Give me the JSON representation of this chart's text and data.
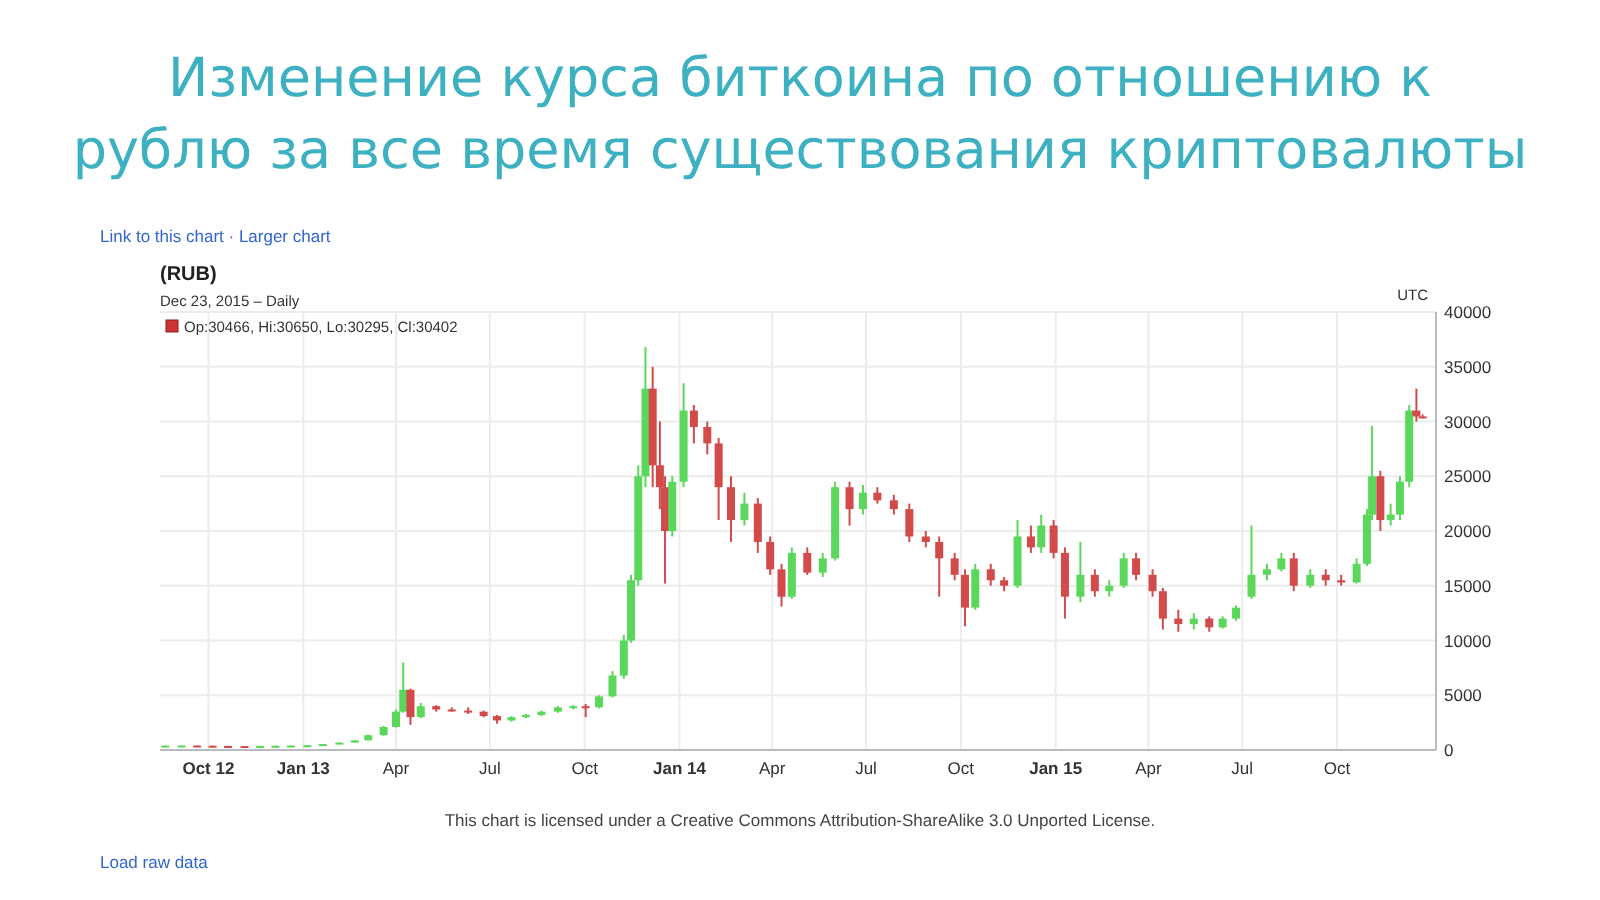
{
  "chart_data": {
    "type": "candlestick",
    "title": "Изменение курса биткоина по отношению к рублю за все время существования криптовалюты",
    "subtitle": "(RUB)",
    "annotations": [
      "Link to this chart · Larger chart",
      "Dec 23, 2015 – Daily",
      "Op:30466, Hi:30650, Lo:30295, Cl:30402",
      "UTC",
      "This chart is licensed under a Creative Commons Attribution-ShareAlike 3.0 Unported License.",
      "Load raw data"
    ],
    "x": [
      "2012-08-20",
      "2012-09-05",
      "2012-09-20",
      "2012-10-05",
      "2012-10-20",
      "2012-11-05",
      "2012-11-20",
      "2012-12-05",
      "2012-12-20",
      "2013-01-05",
      "2013-01-20",
      "2013-02-05",
      "2013-02-20",
      "2013-03-05",
      "2013-03-20",
      "2013-04-01",
      "2013-04-08",
      "2013-04-15",
      "2013-04-25",
      "2013-05-10",
      "2013-05-25",
      "2013-06-10",
      "2013-06-25",
      "2013-07-08",
      "2013-07-22",
      "2013-08-05",
      "2013-08-20",
      "2013-09-05",
      "2013-09-20",
      "2013-10-02",
      "2013-10-15",
      "2013-10-28",
      "2013-11-08",
      "2013-11-15",
      "2013-11-22",
      "2013-11-29",
      "2013-12-06",
      "2013-12-13",
      "2013-12-18",
      "2013-12-25",
      "2014-01-05",
      "2014-01-15",
      "2014-01-28",
      "2014-02-08",
      "2014-02-20",
      "2014-03-05",
      "2014-03-18",
      "2014-03-30",
      "2014-04-10",
      "2014-04-20",
      "2014-05-05",
      "2014-05-20",
      "2014-06-01",
      "2014-06-15",
      "2014-06-28",
      "2014-07-12",
      "2014-07-28",
      "2014-08-12",
      "2014-08-28",
      "2014-09-10",
      "2014-09-25",
      "2014-10-05",
      "2014-10-15",
      "2014-10-30",
      "2014-11-12",
      "2014-11-25",
      "2014-12-08",
      "2014-12-18",
      "2014-12-30",
      "2015-01-10",
      "2015-01-25",
      "2015-02-08",
      "2015-02-22",
      "2015-03-08",
      "2015-03-20",
      "2015-04-05",
      "2015-04-15",
      "2015-04-30",
      "2015-05-15",
      "2015-05-30",
      "2015-06-12",
      "2015-06-25",
      "2015-07-10",
      "2015-07-25",
      "2015-08-08",
      "2015-08-20",
      "2015-09-05",
      "2015-09-20",
      "2015-10-05",
      "2015-10-20",
      "2015-10-30",
      "2015-11-04",
      "2015-11-12",
      "2015-11-22",
      "2015-12-01",
      "2015-12-10",
      "2015-12-17",
      "2015-12-23"
    ],
    "ohlc": [
      [
        380,
        420,
        360,
        400
      ],
      [
        400,
        430,
        380,
        410
      ],
      [
        410,
        420,
        380,
        390
      ],
      [
        390,
        400,
        350,
        370
      ],
      [
        370,
        380,
        340,
        360
      ],
      [
        360,
        370,
        330,
        350
      ],
      [
        350,
        380,
        340,
        370
      ],
      [
        370,
        400,
        360,
        390
      ],
      [
        390,
        420,
        380,
        410
      ],
      [
        410,
        450,
        400,
        440
      ],
      [
        440,
        560,
        430,
        540
      ],
      [
        540,
        700,
        530,
        680
      ],
      [
        680,
        900,
        660,
        880
      ],
      [
        880,
        1400,
        860,
        1350
      ],
      [
        1350,
        2200,
        1300,
        2100
      ],
      [
        2100,
        3700,
        2050,
        3500
      ],
      [
        3500,
        8000,
        3400,
        5500
      ],
      [
        5500,
        5600,
        2300,
        3000
      ],
      [
        3000,
        4300,
        2900,
        4000
      ],
      [
        4000,
        4100,
        3500,
        3700
      ],
      [
        3700,
        3900,
        3500,
        3600
      ],
      [
        3600,
        3900,
        3300,
        3500
      ],
      [
        3500,
        3600,
        3000,
        3100
      ],
      [
        3100,
        3200,
        2400,
        2700
      ],
      [
        2700,
        3100,
        2600,
        3000
      ],
      [
        3000,
        3300,
        2900,
        3200
      ],
      [
        3200,
        3600,
        3100,
        3500
      ],
      [
        3500,
        4000,
        3400,
        3900
      ],
      [
        3900,
        4100,
        3700,
        4000
      ],
      [
        4000,
        4200,
        3000,
        3900
      ],
      [
        3900,
        5000,
        3800,
        4900
      ],
      [
        4900,
        7200,
        4800,
        6800
      ],
      [
        6800,
        10500,
        6500,
        10000
      ],
      [
        10000,
        16000,
        9800,
        15500
      ],
      [
        15500,
        26000,
        15000,
        25000
      ],
      [
        25000,
        36800,
        24000,
        33000
      ],
      [
        33000,
        35000,
        24000,
        26000
      ],
      [
        26000,
        30000,
        22000,
        24000
      ],
      [
        24000,
        25000,
        15200,
        20000
      ],
      [
        20000,
        25000,
        19500,
        24500
      ],
      [
        24500,
        33500,
        24000,
        31000
      ],
      [
        31000,
        31500,
        28000,
        29500
      ],
      [
        29500,
        30000,
        27000,
        28000
      ],
      [
        28000,
        28500,
        21000,
        24000
      ],
      [
        24000,
        25000,
        19000,
        21000
      ],
      [
        21000,
        23500,
        20500,
        22500
      ],
      [
        22500,
        23000,
        18000,
        19000
      ],
      [
        19000,
        19500,
        16000,
        16500
      ],
      [
        16500,
        17000,
        13100,
        14000
      ],
      [
        14000,
        18500,
        13800,
        18000
      ],
      [
        18000,
        18500,
        16000,
        16200
      ],
      [
        16200,
        18000,
        15800,
        17500
      ],
      [
        17500,
        24500,
        17300,
        24000
      ],
      [
        24000,
        24500,
        20500,
        22000
      ],
      [
        22000,
        24200,
        21500,
        23500
      ],
      [
        23500,
        24000,
        22500,
        22800
      ],
      [
        22800,
        23300,
        21500,
        22000
      ],
      [
        22000,
        22500,
        19000,
        19500
      ],
      [
        19500,
        20000,
        18500,
        19000
      ],
      [
        19000,
        19500,
        14000,
        17500
      ],
      [
        17500,
        18000,
        15500,
        16000
      ],
      [
        16000,
        16500,
        11300,
        13000
      ],
      [
        13000,
        17000,
        12800,
        16500
      ],
      [
        16500,
        17000,
        15000,
        15500
      ],
      [
        15500,
        15800,
        14500,
        15000
      ],
      [
        15000,
        21000,
        14800,
        19500
      ],
      [
        19500,
        20500,
        18000,
        18500
      ],
      [
        18500,
        21500,
        18000,
        20500
      ],
      [
        20500,
        21000,
        17500,
        18000
      ],
      [
        18000,
        18500,
        12000,
        14000
      ],
      [
        14000,
        19000,
        13500,
        16000
      ],
      [
        16000,
        16500,
        14000,
        14500
      ],
      [
        14500,
        15500,
        14000,
        15000
      ],
      [
        15000,
        18000,
        14800,
        17500
      ],
      [
        17500,
        18000,
        15500,
        16000
      ],
      [
        16000,
        16500,
        14000,
        14500
      ],
      [
        14500,
        14800,
        11000,
        12000
      ],
      [
        12000,
        12800,
        10800,
        11500
      ],
      [
        11500,
        12500,
        11000,
        12000
      ],
      [
        12000,
        12200,
        10800,
        11200
      ],
      [
        11200,
        12200,
        11100,
        12000
      ],
      [
        12000,
        13200,
        11800,
        13000
      ],
      [
        14000,
        20500,
        13800,
        16000
      ],
      [
        16000,
        17000,
        15500,
        16500
      ],
      [
        16500,
        18000,
        16300,
        17500
      ],
      [
        17500,
        18000,
        14500,
        15000
      ],
      [
        15000,
        16500,
        14800,
        16000
      ],
      [
        16000,
        16500,
        15000,
        15500
      ],
      [
        15500,
        16000,
        15000,
        15300
      ],
      [
        15300,
        17500,
        15200,
        17000
      ],
      [
        17000,
        22000,
        16800,
        21500
      ],
      [
        21500,
        29600,
        21000,
        25000
      ],
      [
        25000,
        25500,
        20000,
        21000
      ],
      [
        21000,
        22500,
        20500,
        21500
      ],
      [
        21500,
        25000,
        21000,
        24500
      ],
      [
        24500,
        31500,
        24000,
        31000
      ],
      [
        31000,
        33000,
        30000,
        30466
      ],
      [
        30466,
        30650,
        30295,
        30402
      ]
    ],
    "colors": [
      "#5bd85b",
      "#5bd85b",
      "#d24a4a",
      "#d24a4a",
      "#d24a4a",
      "#d24a4a",
      "#5bd85b",
      "#5bd85b",
      "#5bd85b",
      "#5bd85b",
      "#5bd85b",
      "#5bd85b",
      "#5bd85b",
      "#5bd85b",
      "#5bd85b",
      "#5bd85b",
      "#5bd85b",
      "#d24a4a",
      "#5bd85b",
      "#d24a4a",
      "#d24a4a",
      "#d24a4a",
      "#d24a4a",
      "#d24a4a",
      "#5bd85b",
      "#5bd85b",
      "#5bd85b",
      "#5bd85b",
      "#5bd85b",
      "#d24a4a",
      "#5bd85b",
      "#5bd85b",
      "#5bd85b",
      "#5bd85b",
      "#5bd85b",
      "#5bd85b",
      "#d24a4a",
      "#d24a4a",
      "#d24a4a",
      "#5bd85b",
      "#5bd85b",
      "#d24a4a",
      "#d24a4a",
      "#d24a4a",
      "#d24a4a",
      "#5bd85b",
      "#d24a4a",
      "#d24a4a",
      "#d24a4a",
      "#5bd85b",
      "#d24a4a",
      "#5bd85b",
      "#5bd85b",
      "#d24a4a",
      "#5bd85b",
      "#d24a4a",
      "#d24a4a",
      "#d24a4a",
      "#d24a4a",
      "#d24a4a",
      "#d24a4a",
      "#d24a4a",
      "#5bd85b",
      "#d24a4a",
      "#d24a4a",
      "#5bd85b",
      "#d24a4a",
      "#5bd85b",
      "#d24a4a",
      "#d24a4a",
      "#5bd85b",
      "#d24a4a",
      "#5bd85b",
      "#5bd85b",
      "#d24a4a",
      "#d24a4a",
      "#d24a4a",
      "#d24a4a",
      "#5bd85b",
      "#d24a4a",
      "#5bd85b",
      "#5bd85b",
      "#5bd85b",
      "#5bd85b",
      "#5bd85b",
      "#d24a4a",
      "#5bd85b",
      "#d24a4a",
      "#d24a4a",
      "#5bd85b",
      "#5bd85b",
      "#5bd85b",
      "#d24a4a",
      "#5bd85b",
      "#5bd85b",
      "#5bd85b",
      "#d24a4a",
      "#d24a4a"
    ],
    "xlim": [
      "2012-08-15",
      "2016-01-05"
    ],
    "xticks": [
      {
        "value": "2012-10-01",
        "label": "Oct 12"
      },
      {
        "value": "2013-01-01",
        "label": "Jan 13"
      },
      {
        "value": "2013-04-01",
        "label": "Apr"
      },
      {
        "value": "2013-07-01",
        "label": "Jul"
      },
      {
        "value": "2013-10-01",
        "label": "Oct"
      },
      {
        "value": "2014-01-01",
        "label": "Jan 14"
      },
      {
        "value": "2014-04-01",
        "label": "Apr"
      },
      {
        "value": "2014-07-01",
        "label": "Jul"
      },
      {
        "value": "2014-10-01",
        "label": "Oct"
      },
      {
        "value": "2015-01-01",
        "label": "Jan 15"
      },
      {
        "value": "2015-04-01",
        "label": "Apr"
      },
      {
        "value": "2015-07-01",
        "label": "Jul"
      },
      {
        "value": "2015-10-01",
        "label": "Oct"
      }
    ],
    "ylim": [
      0,
      40000
    ],
    "yticks": [
      0,
      5000,
      10000,
      15000,
      20000,
      25000,
      30000,
      35000,
      40000
    ],
    "grid": true
  }
}
